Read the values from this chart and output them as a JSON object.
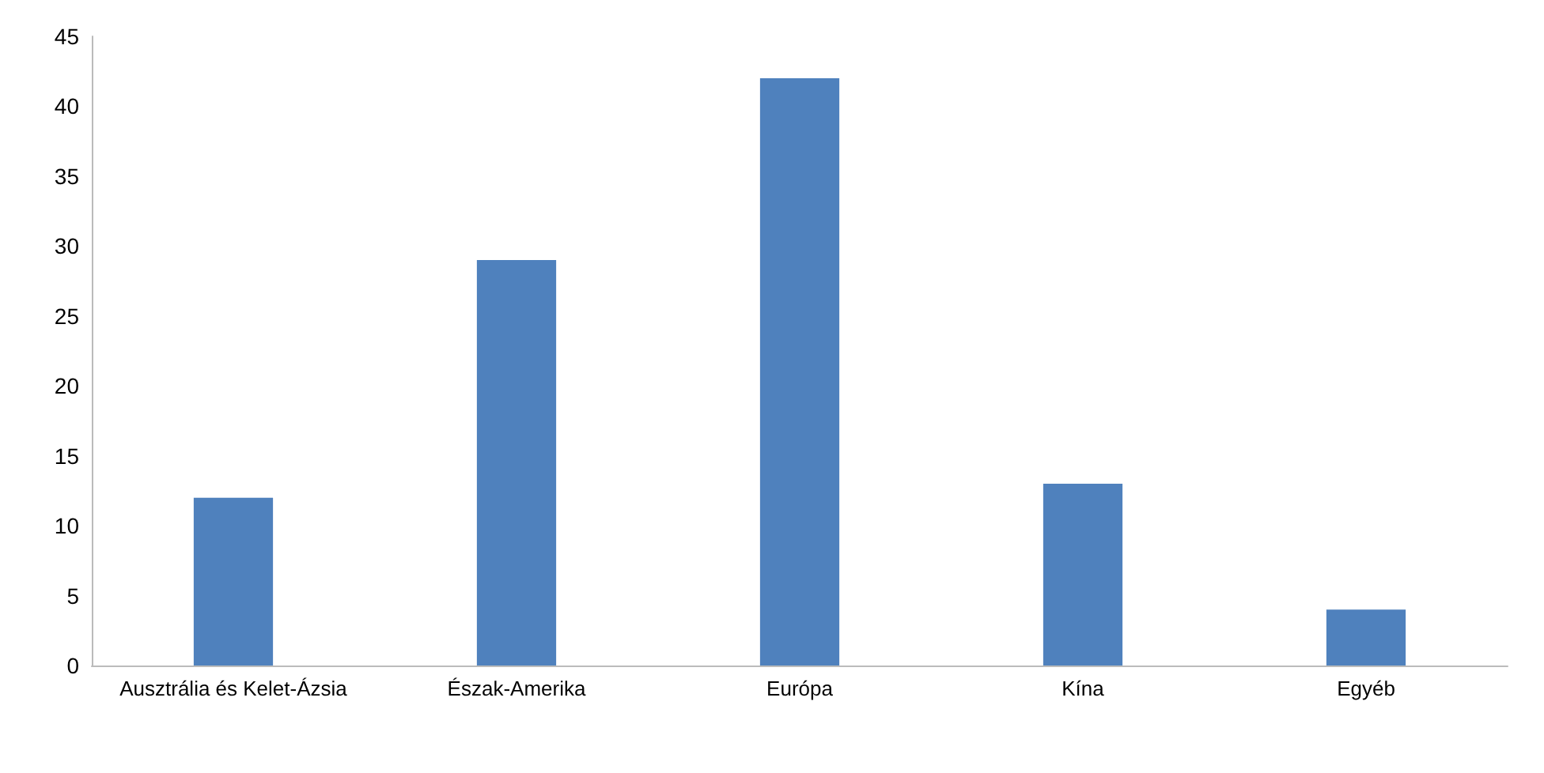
{
  "chart_data": {
    "type": "bar",
    "categories": [
      "Ausztrália és Kelet-Ázsia",
      "Észak-Amerika",
      "Európa",
      "Kína",
      "Egyéb"
    ],
    "values": [
      12,
      29,
      42,
      13,
      4
    ],
    "color": "#4f81bd",
    "ylim": [
      0,
      45
    ],
    "yticks": [
      0,
      5,
      10,
      15,
      20,
      25,
      30,
      35,
      40,
      45
    ],
    "grid": false
  }
}
